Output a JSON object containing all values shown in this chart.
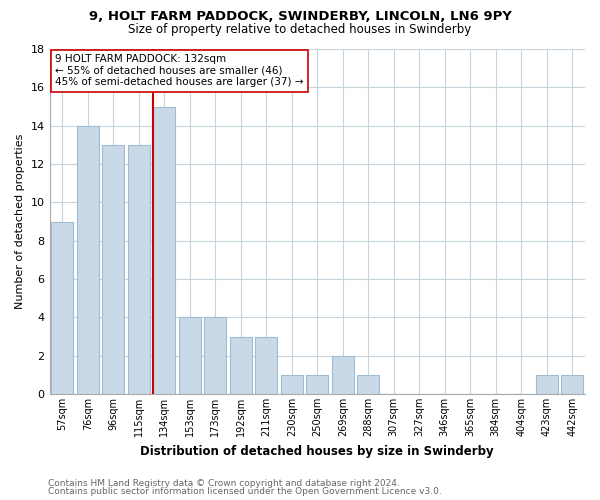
{
  "title": "9, HOLT FARM PADDOCK, SWINDERBY, LINCOLN, LN6 9PY",
  "subtitle": "Size of property relative to detached houses in Swinderby",
  "xlabel": "Distribution of detached houses by size in Swinderby",
  "ylabel": "Number of detached properties",
  "bar_labels": [
    "57sqm",
    "76sqm",
    "96sqm",
    "115sqm",
    "134sqm",
    "153sqm",
    "173sqm",
    "192sqm",
    "211sqm",
    "230sqm",
    "250sqm",
    "269sqm",
    "288sqm",
    "307sqm",
    "327sqm",
    "346sqm",
    "365sqm",
    "384sqm",
    "404sqm",
    "423sqm",
    "442sqm"
  ],
  "bar_values": [
    9,
    14,
    13,
    13,
    15,
    4,
    4,
    3,
    3,
    1,
    1,
    2,
    1,
    0,
    0,
    0,
    0,
    0,
    0,
    1,
    1
  ],
  "bar_color": "#c9d9e8",
  "bar_edge_color": "#a0bcd0",
  "highlight_index": 4,
  "highlight_line_color": "#cc0000",
  "ylim": [
    0,
    18
  ],
  "yticks": [
    0,
    2,
    4,
    6,
    8,
    10,
    12,
    14,
    16,
    18
  ],
  "annotation_title": "9 HOLT FARM PADDOCK: 132sqm",
  "annotation_line1": "← 55% of detached houses are smaller (46)",
  "annotation_line2": "45% of semi-detached houses are larger (37) →",
  "footer1": "Contains HM Land Registry data © Crown copyright and database right 2024.",
  "footer2": "Contains public sector information licensed under the Open Government Licence v3.0.",
  "background_color": "#ffffff",
  "plot_background": "#ffffff",
  "grid_color": "#c8d4dc",
  "annotation_box_color": "#ffffff",
  "annotation_box_edge": "#cc0000",
  "title_fontsize": 9.5,
  "subtitle_fontsize": 8.5,
  "footer_fontsize": 6.5,
  "ylabel_fontsize": 8,
  "xlabel_fontsize": 8.5
}
